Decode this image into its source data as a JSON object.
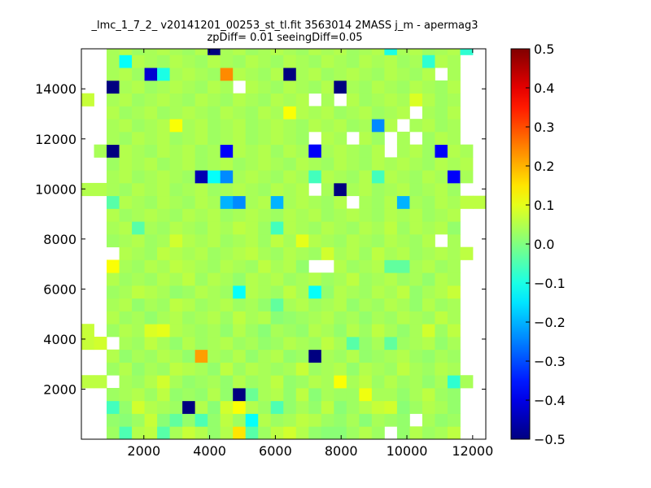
{
  "chart_data": {
    "type": "heatmap",
    "title_line1": "_lmc_1_7_2_ v20141201_00253_st_tl.fit 3563014 2MASS j_m - apermag3",
    "title_line2": "zpDiff= 0.01 seeingDiff=0.05",
    "xlim": [
      100,
      12400
    ],
    "ylim": [
      0,
      15600
    ],
    "x_ticks": [
      2000,
      4000,
      6000,
      8000,
      10000,
      12000
    ],
    "y_ticks": [
      2000,
      4000,
      6000,
      8000,
      10000,
      12000,
      14000
    ],
    "grid": false,
    "colormap": "jet",
    "colorbar": {
      "vmin": -0.5,
      "vmax": 0.5,
      "ticks": [
        -0.5,
        -0.4,
        -0.3,
        -0.2,
        -0.1,
        0.0,
        0.1,
        0.2,
        0.3,
        0.4,
        0.5
      ],
      "tick_labels": [
        "−0.5",
        "−0.4",
        "−0.3",
        "−0.2",
        "−0.1",
        "0.0",
        "0.1",
        "0.2",
        "0.3",
        "0.4",
        "0.5"
      ]
    },
    "bins": {
      "x_start": 100,
      "x_step": 384,
      "y_start": 0,
      "y_step": 512,
      "cols": 32,
      "rows": 31
    },
    "empty_cells_note": "",
    "values": [
      [
        null,
        null,
        0.03,
        -0.05,
        0.05,
        0.06,
        -0.04,
        0.04,
        0.07,
        0.05,
        0.02,
        0.05,
        0.15,
        -0.04,
        0.03,
        0.06,
        0.08,
        0.05,
        0.02,
        0.01,
        0.01,
        0.03,
        0.05,
        0.03,
        null,
        0.02,
        0.05,
        0.03,
        0.04,
        0.06,
        null,
        null
      ],
      [
        null,
        null,
        0.02,
        0.01,
        0.03,
        0.07,
        0.01,
        -0.03,
        0.02,
        -0.05,
        0.02,
        0.06,
        0.03,
        -0.12,
        0.05,
        0.03,
        0.04,
        0.06,
        0.05,
        0.03,
        0.02,
        0.04,
        0.01,
        0.04,
        0.03,
        0.02,
        null,
        0.04,
        0.02,
        0.03,
        null,
        null
      ],
      [
        null,
        null,
        -0.06,
        0.02,
        0.08,
        0.05,
        0.04,
        0.03,
        -0.5,
        0.05,
        0.01,
        0.08,
        0.12,
        0.05,
        0.03,
        -0.05,
        0.02,
        0.04,
        0.02,
        0.06,
        0.01,
        0.03,
        0.05,
        0.07,
        0.08,
        0.01,
        0.03,
        0.05,
        0.04,
        0.02,
        null,
        null
      ],
      [
        null,
        null,
        0.03,
        0.04,
        0.05,
        0.03,
        0.06,
        0.02,
        0.03,
        0.02,
        0.05,
        0.02,
        -0.5,
        -0.02,
        0.04,
        0.05,
        0.02,
        0.06,
        0.01,
        0.04,
        0.03,
        0.03,
        0.11,
        0.04,
        0.04,
        0.02,
        0.04,
        0.06,
        0.03,
        0.02,
        null,
        null
      ],
      [
        0.06,
        0.06,
        null,
        0.04,
        0.03,
        0.05,
        0.08,
        0.04,
        0.02,
        0.03,
        0.04,
        0.02,
        0.05,
        0.03,
        0.04,
        0.06,
        0.02,
        0.03,
        0.05,
        0.04,
        0.12,
        0.04,
        0.06,
        0.03,
        0.05,
        0.03,
        0.04,
        0.02,
        0.04,
        -0.08,
        0.04,
        null
      ],
      [
        null,
        null,
        0.03,
        0.05,
        0.02,
        0.04,
        0.03,
        0.06,
        0.05,
        0.04,
        0.02,
        0.06,
        0.03,
        0.05,
        0.04,
        0.03,
        0.04,
        0.07,
        0.03,
        0.04,
        0.05,
        0.02,
        0.05,
        0.04,
        0.03,
        0.06,
        0.04,
        0.03,
        0.05,
        0.04,
        null,
        null
      ],
      [
        null,
        null,
        0.05,
        0.02,
        0.04,
        0.03,
        0.05,
        0.04,
        0.02,
        0.22,
        0.04,
        0.03,
        0.05,
        0.02,
        0.04,
        0.05,
        0.02,
        0.03,
        -0.5,
        0.04,
        0.03,
        0.05,
        0.02,
        0.03,
        0.04,
        0.05,
        0.03,
        0.02,
        0.04,
        0.03,
        null,
        null
      ],
      [
        0.07,
        0.08,
        null,
        0.04,
        0.03,
        0.06,
        0.04,
        0.02,
        0.05,
        0.03,
        0.04,
        0.05,
        0.03,
        0.04,
        0.02,
        0.03,
        0.05,
        0.04,
        0.03,
        0.06,
        0.04,
        -0.04,
        0.02,
        0.04,
        -0.03,
        0.03,
        0.04,
        0.05,
        0.02,
        0.04,
        null,
        null
      ],
      [
        0.07,
        null,
        0.03,
        0.05,
        0.04,
        0.09,
        0.1,
        0.05,
        0.04,
        0.03,
        0.04,
        0.02,
        0.05,
        0.03,
        0.01,
        0.04,
        0.03,
        0.02,
        0.05,
        0.04,
        0.02,
        0.05,
        0.03,
        0.06,
        0.04,
        0.02,
        0.04,
        0.08,
        0.03,
        0.06,
        null,
        null
      ],
      [
        null,
        null,
        0.05,
        0.03,
        0.04,
        0.02,
        0.04,
        0.05,
        0.03,
        0.04,
        0.05,
        0.03,
        0.06,
        0.04,
        0.05,
        0.01,
        0.02,
        0.03,
        0.04,
        0.05,
        0.03,
        0.04,
        0.02,
        0.04,
        0.03,
        0.05,
        0.04,
        0.03,
        0.06,
        0.04,
        null,
        null
      ],
      [
        null,
        null,
        0.04,
        0.05,
        0.02,
        0.04,
        0.03,
        0.06,
        0.05,
        0.03,
        0.04,
        0.05,
        0.03,
        0.04,
        0.02,
        -0.03,
        0.04,
        0.05,
        0.03,
        0.04,
        0.05,
        0.02,
        0.04,
        0.03,
        0.05,
        0.04,
        0.02,
        0.05,
        0.03,
        0.04,
        null,
        null
      ],
      [
        null,
        null,
        0.03,
        0.04,
        0.06,
        0.05,
        0.04,
        0.02,
        0.03,
        0.05,
        0.04,
        0.03,
        -0.12,
        0.05,
        0.04,
        0.03,
        0.06,
        0.04,
        -0.12,
        0.02,
        0.05,
        0.04,
        0.03,
        0.05,
        0.04,
        0.06,
        0.02,
        0.04,
        0.05,
        0.07,
        null,
        null
      ],
      [
        null,
        null,
        0.05,
        0.03,
        0.04,
        0.03,
        0.05,
        0.04,
        0.06,
        0.03,
        0.05,
        0.04,
        0.02,
        0.05,
        0.04,
        0.05,
        0.03,
        0.04,
        0.05,
        0.03,
        0.04,
        0.06,
        0.03,
        0.04,
        0.05,
        0.03,
        0.04,
        0.02,
        0.05,
        0.04,
        null,
        null
      ],
      [
        null,
        null,
        0.12,
        0.04,
        0.03,
        0.05,
        0.04,
        0.06,
        0.05,
        0.04,
        0.03,
        0.05,
        0.04,
        0.03,
        0.06,
        0.04,
        0.05,
        0.02,
        null,
        null,
        0.05,
        0.03,
        0.04,
        0.05,
        -0.03,
        -0.03,
        0.04,
        0.05,
        0.03,
        0.04,
        null,
        null
      ],
      [
        null,
        null,
        null,
        0.05,
        0.04,
        0.03,
        0.06,
        0.05,
        0.04,
        0.05,
        0.03,
        0.04,
        0.05,
        0.06,
        0.04,
        0.03,
        0.05,
        0.04,
        0.03,
        0.08,
        0.04,
        0.05,
        0.03,
        0.06,
        0.04,
        0.05,
        0.03,
        0.04,
        0.05,
        0.04,
        0.06,
        null
      ],
      [
        null,
        null,
        0.03,
        0.04,
        0.05,
        0.03,
        0.04,
        0.08,
        0.05,
        0.04,
        0.05,
        0.03,
        0.04,
        0.05,
        0.03,
        0.06,
        0.04,
        0.1,
        0.05,
        0.04,
        0.03,
        0.05,
        0.04,
        0.03,
        0.05,
        0.04,
        0.03,
        0.05,
        null,
        0.04,
        null,
        null
      ],
      [
        null,
        null,
        0.04,
        0.05,
        -0.04,
        0.04,
        0.03,
        0.05,
        0.04,
        0.03,
        0.05,
        0.04,
        0.06,
        0.05,
        0.03,
        -0.06,
        0.05,
        0.04,
        0.03,
        0.05,
        0.04,
        0.03,
        0.05,
        0.04,
        0.06,
        0.03,
        0.05,
        0.04,
        0.05,
        0.02,
        null,
        null
      ],
      [
        null,
        null,
        0.05,
        0.03,
        0.04,
        0.05,
        0.04,
        0.03,
        0.05,
        0.04,
        0.05,
        0.03,
        0.04,
        0.05,
        0.04,
        0.03,
        0.05,
        0.04,
        0.05,
        0.03,
        0.04,
        0.05,
        0.04,
        0.03,
        0.05,
        0.04,
        0.05,
        0.03,
        0.04,
        0.05,
        null,
        null
      ],
      [
        null,
        null,
        -0.04,
        0.05,
        0.04,
        0.03,
        0.05,
        0.04,
        0.03,
        0.05,
        0.04,
        -0.2,
        -0.24,
        0.04,
        0.05,
        -0.2,
        0.04,
        0.05,
        0.04,
        0.03,
        0.05,
        null,
        0.04,
        0.03,
        0.05,
        -0.2,
        0.04,
        0.03,
        0.05,
        0.04,
        0.06,
        0.06
      ],
      [
        0.05,
        0.05,
        0.04,
        0.03,
        0.05,
        0.04,
        0.05,
        0.03,
        0.04,
        0.05,
        0.03,
        0.04,
        0.05,
        0.04,
        0.03,
        0.05,
        0.04,
        0.05,
        null,
        0.04,
        -0.5,
        0.04,
        0.05,
        0.03,
        0.04,
        0.05,
        0.03,
        0.04,
        0.05,
        0.03,
        null,
        null
      ],
      [
        null,
        null,
        0.04,
        0.05,
        0.03,
        0.04,
        0.05,
        0.04,
        0.03,
        -0.45,
        -0.12,
        -0.24,
        0.04,
        0.05,
        0.04,
        0.03,
        0.05,
        0.04,
        -0.06,
        0.05,
        0.04,
        0.03,
        0.05,
        -0.06,
        0.05,
        0.04,
        0.03,
        0.05,
        0.04,
        -0.38,
        0.04,
        null
      ],
      [
        null,
        null,
        0.03,
        0.05,
        0.04,
        0.05,
        0.03,
        0.04,
        0.05,
        0.03,
        0.04,
        0.05,
        0.03,
        0.04,
        0.05,
        0.04,
        0.03,
        0.05,
        0.04,
        0.03,
        0.05,
        0.04,
        0.03,
        0.05,
        0.04,
        0.05,
        0.04,
        0.03,
        0.05,
        0.04,
        0.05,
        null
      ],
      [
        null,
        0.04,
        -0.5,
        0.05,
        0.04,
        0.03,
        0.05,
        0.04,
        0.05,
        0.03,
        0.04,
        -0.38,
        0.05,
        0.04,
        0.05,
        0.03,
        0.05,
        0.04,
        -0.38,
        0.04,
        0.05,
        0.04,
        0.03,
        0.05,
        null,
        0.04,
        0.05,
        0.03,
        -0.38,
        0.05,
        0.04,
        null
      ],
      [
        null,
        null,
        0.04,
        0.03,
        0.05,
        0.04,
        0.05,
        0.03,
        0.04,
        0.05,
        0.03,
        0.04,
        0.05,
        0.03,
        0.04,
        0.05,
        0.04,
        0.03,
        null,
        0.05,
        0.04,
        null,
        0.05,
        0.03,
        null,
        0.04,
        null,
        0.03,
        0.05,
        0.04,
        null,
        null
      ],
      [
        null,
        null,
        0.04,
        0.05,
        0.03,
        0.04,
        0.05,
        0.12,
        0.04,
        0.05,
        0.03,
        0.04,
        0.05,
        0.03,
        0.04,
        0.05,
        0.04,
        0.03,
        0.05,
        0.04,
        0.05,
        0.03,
        0.04,
        -0.24,
        0.05,
        null,
        0.04,
        0.05,
        0.03,
        0.04,
        null,
        null
      ],
      [
        null,
        null,
        0.05,
        0.03,
        0.04,
        0.05,
        0.03,
        0.04,
        0.05,
        0.04,
        0.03,
        0.05,
        0.04,
        0.03,
        0.05,
        0.04,
        0.12,
        0.05,
        0.04,
        0.05,
        0.03,
        0.04,
        0.05,
        0.03,
        0.04,
        0.05,
        null,
        0.04,
        0.03,
        0.05,
        null,
        null
      ],
      [
        0.07,
        null,
        0.04,
        0.05,
        0.03,
        0.04,
        0.05,
        0.04,
        0.03,
        0.05,
        0.04,
        0.03,
        0.05,
        0.04,
        0.03,
        0.05,
        0.04,
        0.05,
        null,
        0.04,
        null,
        0.05,
        0.03,
        0.04,
        0.05,
        0.04,
        0.09,
        0.05,
        0.03,
        0.04,
        null,
        null
      ],
      [
        null,
        null,
        -0.5,
        0.04,
        0.05,
        0.03,
        0.04,
        0.05,
        0.04,
        0.03,
        0.05,
        0.04,
        null,
        0.05,
        0.04,
        0.03,
        0.05,
        0.04,
        0.03,
        0.05,
        -0.5,
        0.04,
        0.03,
        0.05,
        0.04,
        0.03,
        0.05,
        0.04,
        0.03,
        0.05,
        null,
        null
      ],
      [
        null,
        null,
        0.04,
        0.05,
        0.03,
        -0.42,
        -0.1,
        0.04,
        0.05,
        0.04,
        0.03,
        0.24,
        0.05,
        0.04,
        0.03,
        0.05,
        -0.5,
        0.04,
        0.05,
        0.03,
        0.04,
        0.05,
        0.04,
        0.03,
        0.05,
        0.04,
        0.03,
        0.05,
        null,
        0.04,
        null,
        null
      ],
      [
        null,
        null,
        0.04,
        -0.12,
        0.05,
        0.04,
        0.03,
        0.05,
        0.04,
        0.03,
        0.05,
        0.04,
        0.03,
        0.05,
        0.04,
        0.03,
        0.05,
        0.04,
        0.03,
        0.05,
        0.04,
        0.03,
        0.05,
        0.04,
        0.05,
        0.03,
        0.04,
        -0.08,
        0.05,
        0.04,
        null,
        null
      ],
      [
        null,
        null,
        0.04,
        0.05,
        0.03,
        0.04,
        0.05,
        0.04,
        0.03,
        0.05,
        -0.5,
        0.04,
        0.05,
        0.03,
        0.04,
        0.05,
        0.04,
        0.03,
        0.05,
        0.04,
        0.05,
        0.03,
        0.04,
        0.05,
        -0.1,
        0.04,
        0.05,
        0.03,
        0.04,
        0.05,
        -0.08,
        null
      ]
    ]
  }
}
